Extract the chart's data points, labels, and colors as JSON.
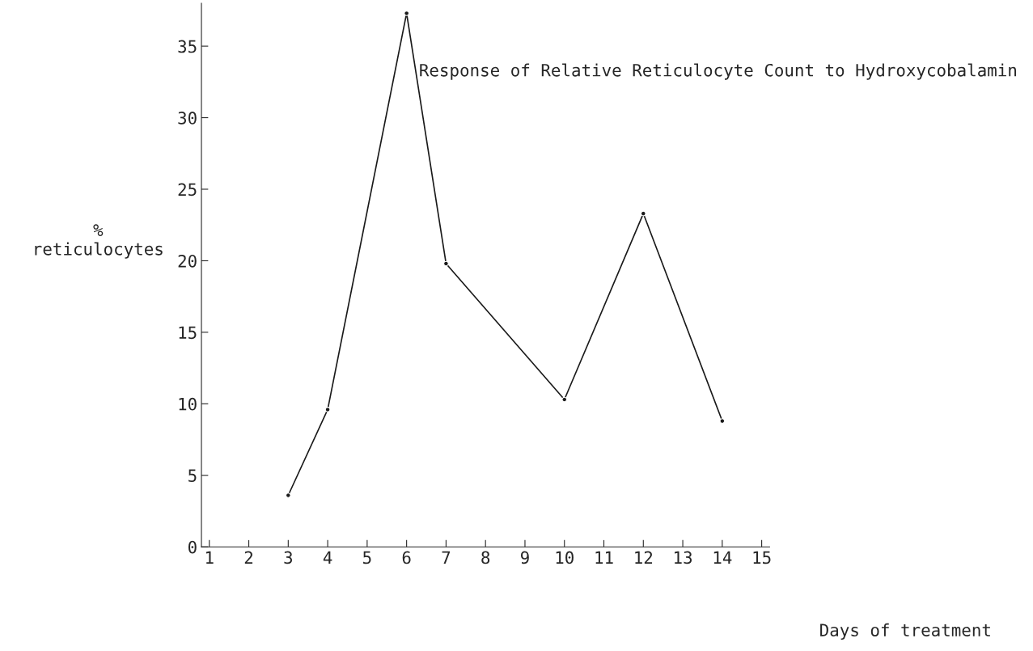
{
  "chart_data": {
    "type": "line",
    "title": "Response of Relative Reticulocyte Count to Hydroxycobalamin",
    "ylabel": "%\nreticulocytes",
    "xlabel": "Days of treatment",
    "x": [
      3,
      4,
      6,
      7,
      10,
      12,
      14
    ],
    "values": [
      3.6,
      9.6,
      37.3,
      19.8,
      10.3,
      23.3,
      8.8
    ],
    "color": "#1a1a1a",
    "marker": "circle",
    "line_style": "solid",
    "xlim": [
      0.8,
      15.2
    ],
    "xticks": [
      1,
      2,
      3,
      4,
      5,
      6,
      7,
      8,
      9,
      10,
      11,
      12,
      13,
      14,
      15
    ],
    "ylim": [
      0,
      38
    ],
    "yticks": [
      0,
      5,
      10,
      15,
      20,
      25,
      30,
      35
    ],
    "grid": false,
    "legend": false
  }
}
